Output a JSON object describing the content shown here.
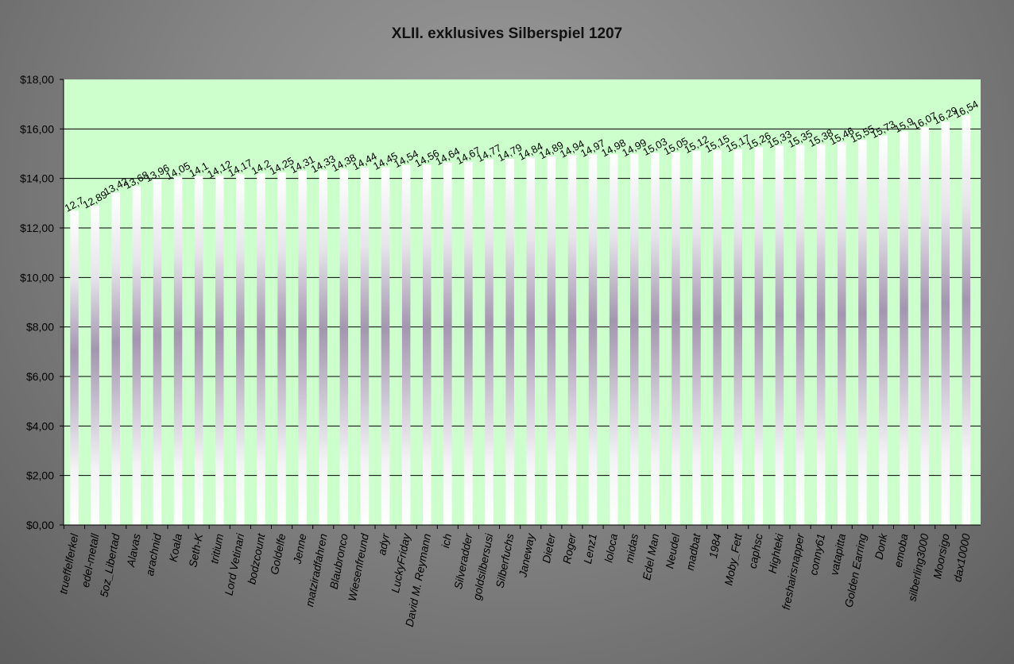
{
  "colors": {
    "background": "#7f7f7f",
    "plot_area": "#ccffcc",
    "gridline": "#000000",
    "bar_light": "#ffffff",
    "bar_mid": "#9c8ca8"
  },
  "chart_data": {
    "type": "bar",
    "title": "XLII. exklusives Silberspiel 1207",
    "xlabel": "",
    "ylabel": "",
    "ylim": [
      0,
      18
    ],
    "ytick_values": [
      0,
      2,
      4,
      6,
      8,
      10,
      12,
      14,
      16,
      18
    ],
    "ytick_labels": [
      "$0,00",
      "$2,00",
      "$4,00",
      "$6,00",
      "$8,00",
      "$10,00",
      "$12,00",
      "$14,00",
      "$16,00",
      "$18,00"
    ],
    "grid": true,
    "legend": "none",
    "categories": [
      "trueffelferkel",
      "edel-metall",
      "5oz_Libertad",
      "Alavas",
      "arachnid",
      "Koala",
      "Seth-K",
      "tritium",
      "Lord Vetinari",
      "bodzcount",
      "Goldelfe",
      "Jenne",
      "matziradfahren",
      "Blaubronco",
      "Wiesenfreund",
      "adyr",
      "LuckyFriday",
      "David M. Reymann",
      "ich",
      "Silveradder",
      "goldsilbersusi",
      "Silberfuchs",
      "Janeway",
      "Dieter",
      "Roger",
      "Lenz1",
      "loloca",
      "midas",
      "Edel Man",
      "Neudel",
      "madbat",
      "1984",
      "Moby_Fett",
      "caphsc",
      "Highteki",
      "freshairsnapper",
      "conny61",
      "vatapitta",
      "Golden Earring",
      "Donk",
      "emoba",
      "silberling3000",
      "Moorsigo",
      "dax10000"
    ],
    "values": [
      12.7,
      12.89,
      13.42,
      13.68,
      13.96,
      14.05,
      14.1,
      14.12,
      14.17,
      14.2,
      14.25,
      14.31,
      14.33,
      14.38,
      14.44,
      14.45,
      14.54,
      14.56,
      14.64,
      14.67,
      14.77,
      14.79,
      14.84,
      14.89,
      14.94,
      14.97,
      14.98,
      14.99,
      15.03,
      15.05,
      15.12,
      15.15,
      15.17,
      15.26,
      15.33,
      15.35,
      15.38,
      15.46,
      15.55,
      15.73,
      15.9,
      16.07,
      16.29,
      16.54
    ],
    "value_labels": [
      "12,7",
      "12,89",
      "13,42",
      "13,68",
      "13,96",
      "14,05",
      "14,1",
      "14,12",
      "14,17",
      "14,2",
      "14,25",
      "14,31",
      "14,33",
      "14,38",
      "14,44",
      "14,45",
      "14,54",
      "14,56",
      "14,64",
      "14,67",
      "14,77",
      "14,79",
      "14,84",
      "14,89",
      "14,94",
      "14,97",
      "14,98",
      "14,99",
      "15,03",
      "15,05",
      "15,12",
      "15,15",
      "15,17",
      "15,26",
      "15,33",
      "15,35",
      "15,38",
      "15,46",
      "15,55",
      "15,73",
      "15,9",
      "16,07",
      "16,29",
      "16,54"
    ]
  }
}
